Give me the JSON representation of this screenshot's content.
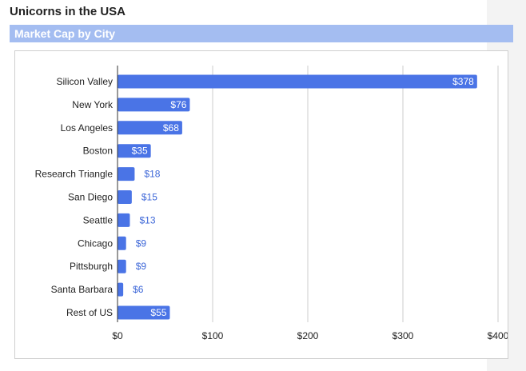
{
  "page": {
    "title": "Unicorns in the USA",
    "section_title": "Market Cap by City"
  },
  "colors": {
    "bar": "#4a74e6",
    "section_bar": "#a4bdf1",
    "grid": "#cccccc",
    "axis": "#333333",
    "label_inside": "#ffffff",
    "label_outside": "#3d67d8",
    "text": "#222222"
  },
  "chart_data": {
    "type": "bar",
    "orientation": "horizontal",
    "title": "",
    "xlabel": "",
    "ylabel": "",
    "categories": [
      "Silicon Valley",
      "New York",
      "Los Angeles",
      "Boston",
      "Research Triangle",
      "San Diego",
      "Seattle",
      "Chicago",
      "Pittsburgh",
      "Santa Barbara",
      "Rest of US"
    ],
    "values": [
      378,
      76,
      68,
      35,
      18,
      15,
      13,
      9,
      9,
      6,
      55
    ],
    "data_labels": [
      "$378",
      "$76",
      "$68",
      "$35",
      "$18",
      "$15",
      "$13",
      "$9",
      "$9",
      "$6",
      "$55"
    ],
    "xlim": [
      0,
      400
    ],
    "x_ticks": [
      0,
      100,
      200,
      300,
      400
    ],
    "x_tick_labels": [
      "$0",
      "$100",
      "$200",
      "$300",
      "$400"
    ],
    "grid": true,
    "legend": "none"
  }
}
